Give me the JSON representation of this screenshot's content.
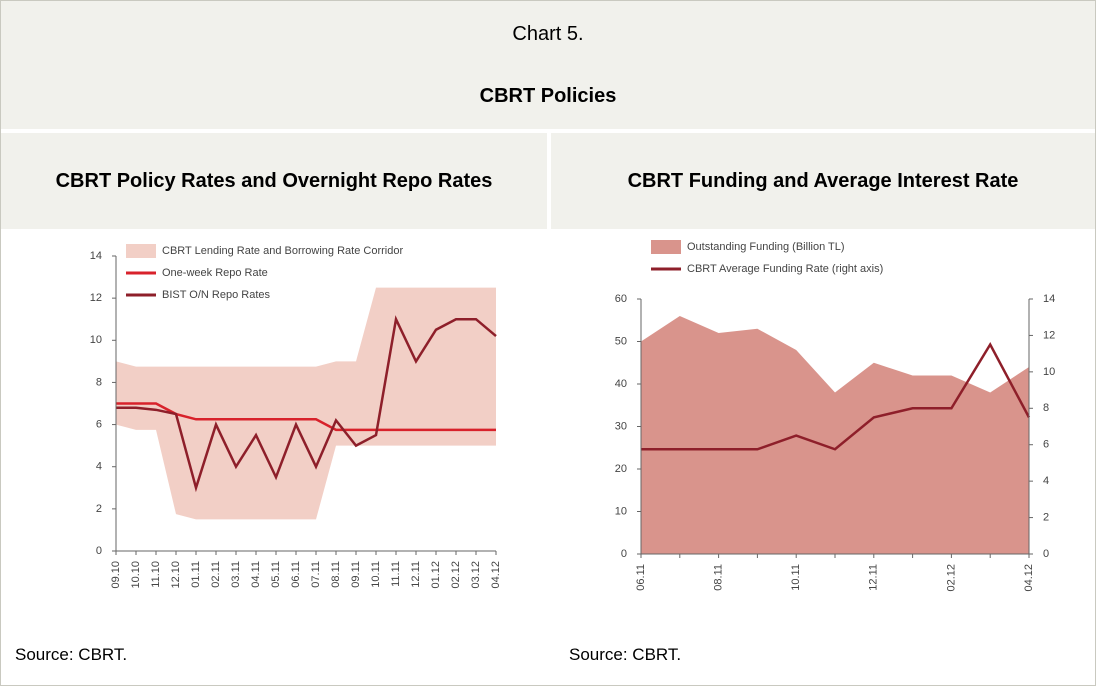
{
  "header": {
    "title": "Chart 5.",
    "subtitle": "CBRT Policies"
  },
  "panels": [
    {
      "title": "CBRT Policy Rates and Overnight Repo Rates",
      "source": "Source: CBRT."
    },
    {
      "title": "CBRT Funding and Average Interest Rate",
      "source": "Source: CBRT."
    }
  ],
  "chart_data": [
    {
      "type": "line",
      "categories": [
        "09.10",
        "10.10",
        "11.10",
        "12.10",
        "01.11",
        "02.11",
        "03.11",
        "04.11",
        "05.11",
        "06.11",
        "07.11",
        "08.11",
        "09.11",
        "10.11",
        "11.11",
        "12.11",
        "01.12",
        "02.12",
        "03.12",
        "04.12"
      ],
      "ylim": [
        0,
        14
      ],
      "yticks": [
        0,
        2,
        4,
        6,
        8,
        10,
        12,
        14
      ],
      "series": [
        {
          "name": "CBRT Lending Rate and Borrowing Rate Corridor",
          "type": "band",
          "color": "#f2cfc6",
          "values": [
            9,
            8.75,
            8.75,
            8.75,
            8.75,
            8.75,
            8.75,
            8.75,
            8.75,
            8.75,
            8.75,
            9,
            9,
            12.5,
            12.5,
            12.5,
            12.5,
            12.5,
            12.5,
            12.5
          ],
          "lower": [
            6,
            5.75,
            5.75,
            1.75,
            1.5,
            1.5,
            1.5,
            1.5,
            1.5,
            1.5,
            1.5,
            5,
            5,
            5,
            5,
            5,
            5,
            5,
            5,
            5
          ]
        },
        {
          "name": "One-week Repo Rate",
          "type": "line",
          "color": "#d8222b",
          "values": [
            7,
            7,
            7,
            6.5,
            6.25,
            6.25,
            6.25,
            6.25,
            6.25,
            6.25,
            6.25,
            5.75,
            5.75,
            5.75,
            5.75,
            5.75,
            5.75,
            5.75,
            5.75,
            5.75
          ]
        },
        {
          "name": "BIST O/N Repo Rates",
          "type": "line",
          "color": "#8e1f2a",
          "values": [
            6.8,
            6.8,
            6.7,
            6.5,
            3,
            6,
            4,
            5.5,
            3.5,
            6,
            4,
            6.2,
            5,
            5.5,
            11,
            9,
            10.5,
            11,
            11,
            10.2
          ]
        }
      ]
    },
    {
      "type": "line",
      "categories": [
        "06.11",
        null,
        "08.11",
        null,
        "10.11",
        null,
        "12.11",
        null,
        "02.12",
        null,
        "04.12"
      ],
      "ylim": [
        0,
        60
      ],
      "yticks": [
        0,
        10,
        20,
        30,
        40,
        50,
        60
      ],
      "y2lim": [
        0,
        14
      ],
      "y2ticks": [
        0,
        2,
        4,
        6,
        8,
        10,
        12,
        14
      ],
      "series": [
        {
          "name": "Outstanding Funding (Billion TL)",
          "type": "area",
          "color": "#d9948c",
          "values": [
            50,
            56,
            52,
            53,
            48,
            38,
            45,
            42,
            42,
            38,
            44
          ]
        },
        {
          "name": "CBRT Average Funding Rate (right axis)",
          "type": "line",
          "axis": "y2",
          "color": "#8e1f2a",
          "values": [
            5.75,
            5.75,
            5.75,
            5.75,
            6.5,
            5.75,
            7.5,
            8,
            8,
            11.5,
            7.5
          ]
        }
      ]
    }
  ]
}
